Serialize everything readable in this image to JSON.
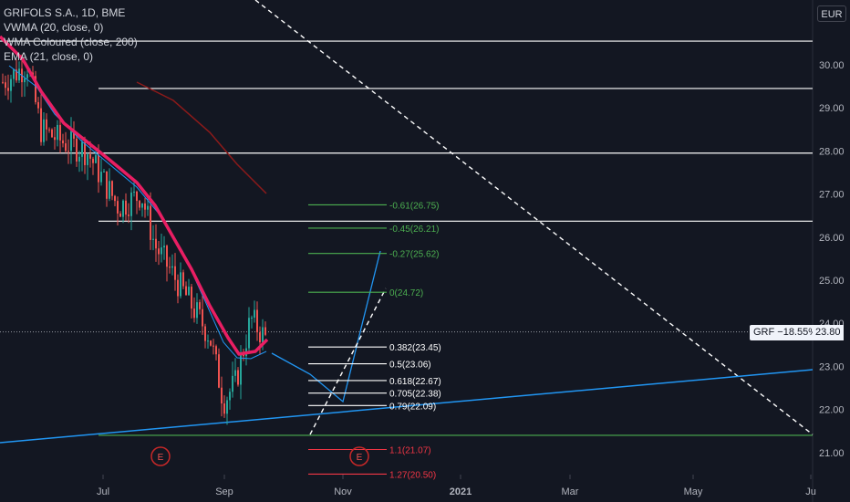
{
  "chart_data": {
    "type": "candlestick",
    "title": "GRIFOLS S.A., 1D, BME",
    "indicators": [
      "VWMA (20, close, 0)",
      "WMA Coloured (close, 200)",
      "EMA (21, close, 0)"
    ],
    "currency": "EUR",
    "y_ticks": [
      "30.00",
      "29.00",
      "28.00",
      "27.00",
      "26.00",
      "25.00",
      "24.00",
      "23.00",
      "22.00",
      "21.00"
    ],
    "x_ticks": [
      "Jul",
      "Sep",
      "Nov",
      "2021",
      "Mar",
      "May",
      "Ju"
    ],
    "ylim": [
      20.5,
      31.0
    ],
    "last_price": "23.80",
    "change_label": "GRF −18.55%",
    "horizontal_levels": [
      30.55,
      29.45,
      27.95,
      26.37,
      21.4
    ],
    "fib_levels": [
      {
        "label": "-0.61(26.75)",
        "value": 26.75,
        "color": "#4caf50"
      },
      {
        "label": "-0.45(26.21)",
        "value": 26.21,
        "color": "#4caf50"
      },
      {
        "label": "-0.27(25.62)",
        "value": 25.62,
        "color": "#4caf50"
      },
      {
        "label": "0(24.72)",
        "value": 24.72,
        "color": "#4caf50"
      },
      {
        "label": "0.382(23.45)",
        "value": 23.45,
        "color": "#ffffff"
      },
      {
        "label": "0.5(23.06)",
        "value": 23.06,
        "color": "#ffffff"
      },
      {
        "label": "0.618(22.67)",
        "value": 22.67,
        "color": "#ffffff"
      },
      {
        "label": "0.705(22.38)",
        "value": 22.38,
        "color": "#ffffff"
      },
      {
        "label": "0.79(22.09)",
        "value": 22.09,
        "color": "#ffffff"
      },
      {
        "label": "1.1(21.07)",
        "value": 21.07,
        "color": "#f23645"
      },
      {
        "label": "1.27(20.50)",
        "value": 20.5,
        "color": "#f23645"
      }
    ],
    "event_markers": [
      "E",
      "E"
    ],
    "grid": false
  }
}
